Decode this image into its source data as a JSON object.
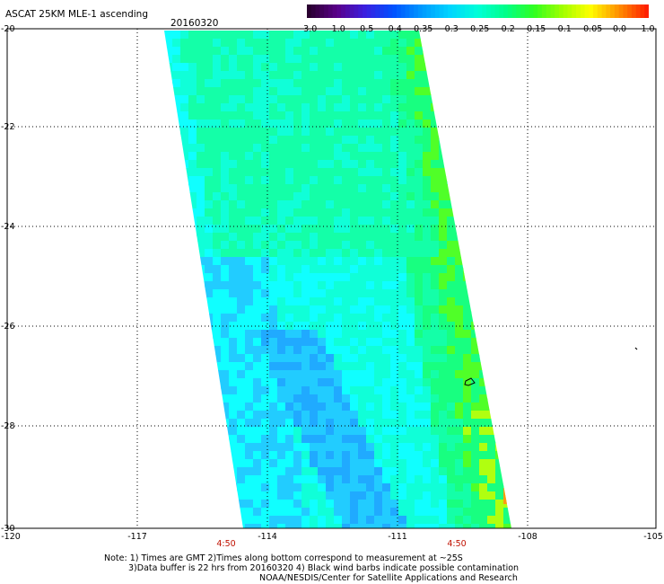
{
  "header": {
    "title": "ASCAT 25KM MLE-1 ascending",
    "date": "20160320"
  },
  "colorbar": {
    "labels": [
      "-3.0",
      "-1.0",
      "-0.5",
      "-0.4",
      "-0.35",
      "-0.3",
      "-0.25",
      "-0.2",
      "-0.15",
      "-0.1",
      "-0.05",
      "0.0",
      "1.0"
    ],
    "colors": [
      "#2a0030",
      "#5a008a",
      "#3a20e0",
      "#0050ff",
      "#0099ff",
      "#00d4ff",
      "#00ffd8",
      "#00ff88",
      "#30ff20",
      "#a0ff00",
      "#ffff00",
      "#ff9000",
      "#ff2000"
    ]
  },
  "map": {
    "lat_labels": [
      "-20",
      "-22",
      "-24",
      "-26",
      "-28",
      "-30"
    ],
    "lon_labels": [
      "-120",
      "-117",
      "-114",
      "-111",
      "-108",
      "-105"
    ],
    "time_labels": [
      "4:50",
      "4:50"
    ],
    "palette": {
      "blue": "#20aaff",
      "lightblue": "#22ccff",
      "cyan": "#10ffff",
      "aqua": "#10ffd8",
      "mint": "#14ffa8",
      "green": "#18ff80",
      "lime": "#50ff28",
      "yellowgreen": "#b0ff10",
      "orange": "#ff9a10"
    }
  },
  "notes": [
    "Note: 1) Times are GMT 2)Times along bottom correspond to measurement at ~25S",
    "3)Data buffer is 22 hrs from 20160320 4) Black wind barbs indicate possible contamination",
    "NOAA/NESDIS/Center for Satellite Applications and Research"
  ]
}
